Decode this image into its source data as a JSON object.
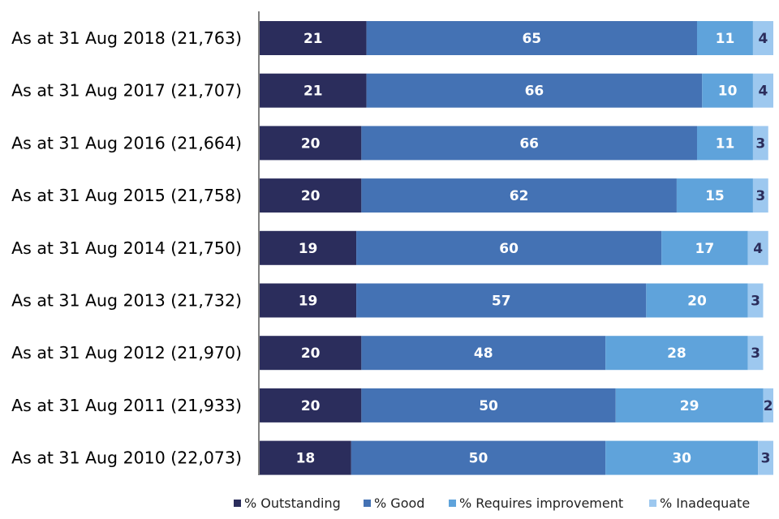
{
  "chart_data": {
    "type": "bar",
    "orientation": "horizontal",
    "stacked": true,
    "categories": [
      "As at 31 Aug 2018 (21,763)",
      "As at 31 Aug 2017 (21,707)",
      "As at 31 Aug 2016 (21,664)",
      "As at 31 Aug 2015 (21,758)",
      "As at 31 Aug 2014 (21,750)",
      "As at 31 Aug 2013 (21,732)",
      "As at 31 Aug 2012 (21,970)",
      "As at 31 Aug 2011 (21,933)",
      "As at 31 Aug 2010 (22,073)"
    ],
    "series": [
      {
        "name": "% Outstanding",
        "color": "#2b2d5c",
        "label_color": "#ffffff",
        "values": [
          21,
          21,
          20,
          20,
          19,
          19,
          20,
          20,
          18
        ]
      },
      {
        "name": "% Good",
        "color": "#4472b4",
        "label_color": "#ffffff",
        "values": [
          65,
          66,
          66,
          62,
          60,
          57,
          48,
          50,
          50
        ]
      },
      {
        "name": "% Requires improvement",
        "color": "#5fa3db",
        "label_color": "#ffffff",
        "values": [
          11,
          10,
          11,
          15,
          17,
          20,
          28,
          29,
          30
        ]
      },
      {
        "name": "% Inadequate",
        "color": "#9dc8ef",
        "label_color": "#2b2d5c",
        "values": [
          4,
          4,
          3,
          3,
          4,
          3,
          3,
          2,
          3
        ]
      }
    ],
    "title": "",
    "xlabel": "",
    "ylabel": "",
    "xlim": [
      0,
      101
    ],
    "grid": false,
    "legend_position": "bottom"
  }
}
